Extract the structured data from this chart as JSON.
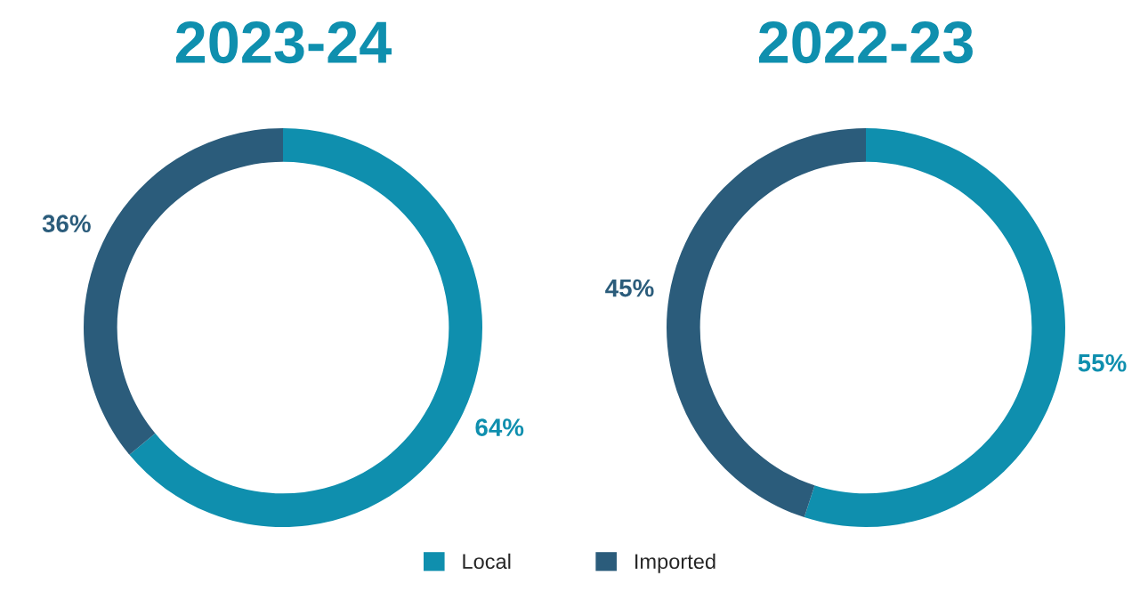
{
  "chart_data": [
    {
      "type": "donut",
      "title": "2023-24",
      "categories": [
        "Local",
        "Imported"
      ],
      "values": [
        64,
        36
      ],
      "colors": [
        "#0f8fae",
        "#2b5c7b"
      ],
      "value_labels": [
        "64%",
        "36%"
      ],
      "legend": "bottom"
    },
    {
      "type": "donut",
      "title": "2022-23",
      "categories": [
        null,
        null
      ],
      "values": [
        55,
        45
      ],
      "colors": [
        "#0f8fae",
        "#2b5c7b"
      ],
      "value_labels": [
        "55%",
        "45%"
      ]
    }
  ]
}
